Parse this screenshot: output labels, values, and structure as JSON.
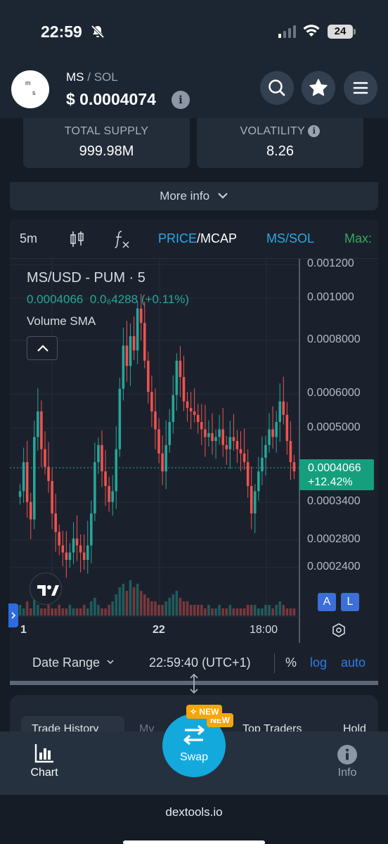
{
  "status_bar": {
    "time": "22:59",
    "battery": "24"
  },
  "header": {
    "logo_text_top": "m",
    "logo_text_bottom": "s",
    "base_token": "MS",
    "separator": "/",
    "quote_token": "SOL",
    "price": "$ 0.0004074",
    "info_icon": "i"
  },
  "stats": [
    {
      "label": "TOTAL SUPPLY",
      "value": "999.98M"
    },
    {
      "label": "VOLATILITY",
      "value": "8.26"
    }
  ],
  "more_info_label": "More info",
  "chart_toolbar": {
    "interval": "5m",
    "price_label": "PRICE",
    "slash": "/",
    "mcap_label": "MCAP",
    "pair_label": "MS/SOL",
    "max_label": "Max:"
  },
  "chart_legend": {
    "title": "MS/USD - PUM · 5",
    "last_value": "0.0004066",
    "change_value": "0.0₆4288 (+0.11%)",
    "volume_label": "Volume SMA"
  },
  "chart_data": {
    "type": "candlestick",
    "title": "MS/USD - PUM · 5",
    "y_scale": "log",
    "y_ticks": [
      "0.001200",
      "0.001000",
      "0.0008000",
      "0.0006000",
      "0.0005000",
      "0.0003400",
      "0.0002800",
      "0.0002400"
    ],
    "x_ticks": [
      "1",
      "22",
      "18:00"
    ],
    "last_price": "0.0004066",
    "last_change": "+12.42%",
    "close_series": [
      0.00036,
      0.00042,
      0.00034,
      0.00031,
      0.00048,
      0.00055,
      0.00045,
      0.00041,
      0.00038,
      0.00032,
      0.00029,
      0.00027,
      0.00026,
      0.00025,
      0.00026,
      0.00028,
      0.00027,
      0.00026,
      0.00025,
      0.00027,
      0.00032,
      0.00042,
      0.00046,
      0.0004,
      0.00037,
      0.00034,
      0.00036,
      0.00045,
      0.00062,
      0.00078,
      0.0007,
      0.00082,
      0.00076,
      0.00095,
      0.00088,
      0.00072,
      0.00061,
      0.00055,
      0.0005,
      0.00044,
      0.0004,
      0.00046,
      0.00052,
      0.0006,
      0.00072,
      0.00066,
      0.00058,
      0.00056,
      0.00055,
      0.00054,
      0.00052,
      0.0005,
      0.00048,
      0.00049,
      0.00047,
      0.00048,
      0.0005,
      0.00046,
      0.00045,
      0.00048,
      0.00047,
      0.00045,
      0.00044,
      0.00042,
      0.00037,
      0.00032,
      0.00036,
      0.0004,
      0.00043,
      0.00046,
      0.0005,
      0.00048,
      0.00052,
      0.00058,
      0.00054,
      0.00047,
      0.00042,
      0.0004
    ],
    "volume_series": [
      3,
      2,
      4,
      2,
      5,
      3,
      2,
      2,
      3,
      2,
      2,
      3,
      2,
      2,
      3,
      2,
      2,
      2,
      3,
      2,
      4,
      5,
      3,
      2,
      2,
      3,
      4,
      6,
      8,
      9,
      7,
      10,
      8,
      9,
      7,
      6,
      5,
      4,
      4,
      3,
      3,
      4,
      5,
      6,
      7,
      5,
      4,
      4,
      3,
      3,
      3,
      3,
      2,
      3,
      2,
      2,
      3,
      2,
      2,
      3,
      2,
      2,
      2,
      2,
      3,
      3,
      3,
      2,
      2,
      3,
      3,
      2,
      3,
      4,
      3,
      2,
      2,
      2
    ]
  },
  "chart_controls": {
    "date_range_label": "Date Range",
    "timestamp": "22:59:40 (UTC+1)",
    "percent_label": "%",
    "log_label": "log",
    "auto_label": "auto",
    "a_label": "A",
    "l_label": "L"
  },
  "lower_tabs": [
    "Trade History",
    "My",
    "Top Traders",
    "Hold"
  ],
  "bottom_nav": {
    "chart_label": "Chart",
    "swap_label": "Swap",
    "info_label": "Info",
    "new_badge": "NEW",
    "new_badge_2": "NEW"
  },
  "url": "dextools.io",
  "colors": {
    "accent_blue": "#2f8de4",
    "up_green": "#26a69a",
    "down_red": "#ef5350",
    "swap_cyan": "#13a9dd",
    "badge_orange": "#f6a609"
  }
}
